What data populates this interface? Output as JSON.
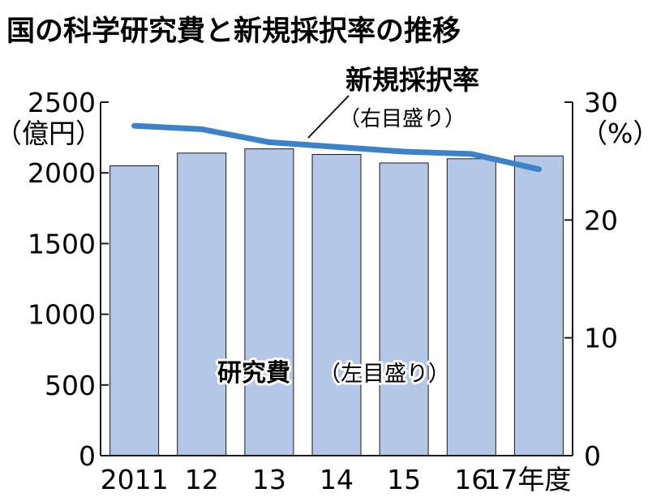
{
  "title": "国の科学研究費と新規採択率の推移",
  "chart_data": {
    "type": "bar",
    "categories": [
      "2011",
      "12",
      "13",
      "14",
      "15",
      "16",
      "17年度"
    ],
    "series": [
      {
        "name": "研究費",
        "axis": "left",
        "mark": "bar",
        "values": [
          2050,
          2140,
          2170,
          2130,
          2070,
          2100,
          2120
        ]
      },
      {
        "name": "新規採択率",
        "axis": "right",
        "mark": "line",
        "values": [
          28.0,
          27.7,
          26.6,
          26.2,
          25.8,
          25.6,
          24.3
        ]
      }
    ],
    "left_axis": {
      "unit": "（億円）",
      "ticks": [
        "0",
        "500",
        "1000",
        "1500",
        "2000",
        "2500"
      ],
      "ylim": [
        0,
        2500
      ]
    },
    "right_axis": {
      "unit": "（%）",
      "ticks": [
        "0",
        "10",
        "20",
        "30"
      ],
      "ylim": [
        0,
        30
      ]
    },
    "labels": {
      "line_title": "新規採択率",
      "line_axis_note": "（右目盛り）",
      "bar_title": "研究費",
      "bar_axis_note": "（左目盛り）"
    },
    "colors": {
      "bar": "#b4c7e7",
      "bar_stroke": "#1a1a1a",
      "line": "#3b82c9",
      "axis": "#1a1a1a"
    },
    "grid": false
  }
}
